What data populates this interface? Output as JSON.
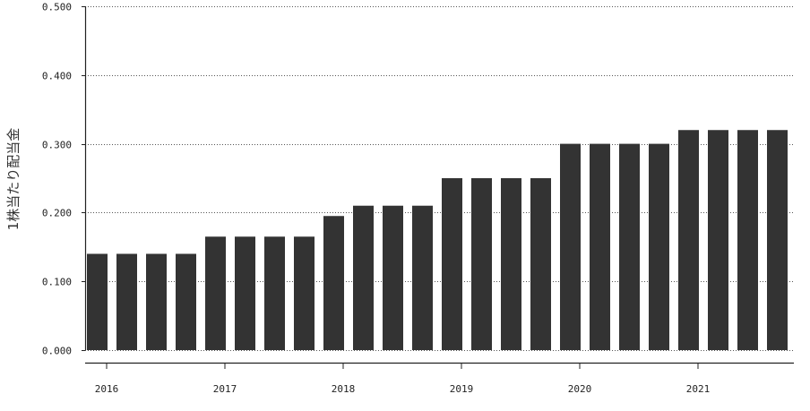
{
  "chart_data": {
    "type": "bar",
    "ylabel": "1株当たり配当金",
    "xlabel": "",
    "ylim": [
      0,
      0.5
    ],
    "y_ticks": [
      "0.000",
      "0.100",
      "0.200",
      "0.300",
      "0.400",
      "0.500"
    ],
    "x_tick_labels": [
      "2016",
      "2017",
      "2018",
      "2019",
      "2020",
      "2021"
    ],
    "grid": "horizontal dotted",
    "bar_color": "#333333",
    "series": [
      {
        "values": [
          0.14,
          0.14,
          0.14,
          0.14,
          0.165,
          0.165,
          0.165,
          0.165,
          0.195,
          0.21,
          0.21,
          0.21,
          0.25,
          0.25,
          0.25,
          0.25,
          0.3,
          0.3,
          0.3,
          0.3,
          0.32,
          0.32,
          0.32,
          0.32
        ]
      }
    ]
  }
}
